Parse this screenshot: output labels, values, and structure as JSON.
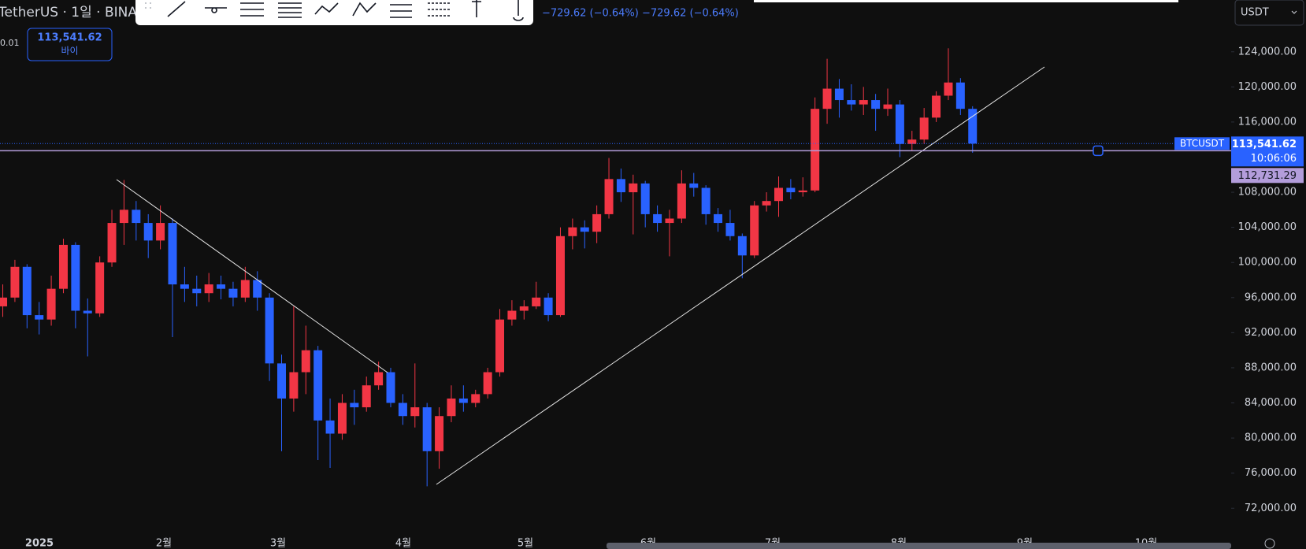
{
  "ui": {
    "title": "TetherUS · 1일 · BINA",
    "quantity": "0.01",
    "buy_price": "113,541.62",
    "buy_label": "바이",
    "change": "−729.62 (−0.64%)  −729.62 (−0.64%)",
    "currency": "USDT",
    "symbol": "BTCUSDT",
    "countdown": "10:06:06"
  },
  "chart_data": {
    "type": "candlestick",
    "up_color": "#f23645",
    "down_color": "#2962ff",
    "ylim": [
      69600,
      129900
    ],
    "yticks": [
      {
        "value": 72000,
        "label": "72,000.00"
      },
      {
        "value": 76000,
        "label": "76,000.00"
      },
      {
        "value": 80000,
        "label": "80,000.00"
      },
      {
        "value": 84000,
        "label": "84,000.00"
      },
      {
        "value": 88000,
        "label": "88,000.00"
      },
      {
        "value": 92000,
        "label": "92,000.00"
      },
      {
        "value": 96000,
        "label": "96,000.00"
      },
      {
        "value": 100000,
        "label": "100,000.00"
      },
      {
        "value": 104000,
        "label": "104,000.00"
      },
      {
        "value": 108000,
        "label": "108,000.00"
      },
      {
        "value": 112000,
        "label": "112,000.00"
      },
      {
        "value": 116000,
        "label": "116,000.00"
      },
      {
        "value": 120000,
        "label": "120,000.00"
      },
      {
        "value": 124000,
        "label": "124,000.00"
      }
    ],
    "xticks": [
      "2025",
      "2월",
      "3월",
      "4월",
      "5월",
      "6월",
      "7월",
      "8월",
      "9월",
      "10월"
    ],
    "current_price": {
      "value": 113541.62,
      "label": "113,541.62"
    },
    "level": {
      "value": 112731.29,
      "label": "112,731.29"
    },
    "candles": [
      [
        95000,
        97500,
        93800,
        96000
      ],
      [
        96000,
        100300,
        95500,
        99500
      ],
      [
        99500,
        99800,
        92500,
        94000
      ],
      [
        94000,
        95500,
        91800,
        93500
      ],
      [
        93500,
        98500,
        92800,
        97000
      ],
      [
        97000,
        102700,
        96500,
        102000
      ],
      [
        102000,
        102300,
        92500,
        94500
      ],
      [
        94500,
        95900,
        89300,
        94200
      ],
      [
        94200,
        100700,
        93800,
        100000
      ],
      [
        100000,
        106000,
        99500,
        104500
      ],
      [
        104500,
        109400,
        102000,
        106000
      ],
      [
        106000,
        107000,
        102500,
        104500
      ],
      [
        104500,
        105500,
        100500,
        102500
      ],
      [
        102500,
        106500,
        101500,
        104500
      ],
      [
        104500,
        105000,
        91500,
        97500
      ],
      [
        97500,
        99500,
        95500,
        97000
      ],
      [
        97000,
        98500,
        95000,
        96500
      ],
      [
        96500,
        98800,
        95500,
        97500
      ],
      [
        97500,
        98500,
        95800,
        97000
      ],
      [
        97000,
        97800,
        95000,
        96000
      ],
      [
        96000,
        99500,
        95500,
        98000
      ],
      [
        98000,
        99000,
        94500,
        96000
      ],
      [
        96000,
        96500,
        86500,
        88500
      ],
      [
        88500,
        89500,
        78500,
        84500
      ],
      [
        84500,
        95000,
        83000,
        87500
      ],
      [
        87500,
        92800,
        85000,
        90000
      ],
      [
        90000,
        90500,
        77500,
        82000
      ],
      [
        82000,
        84500,
        76600,
        80500
      ],
      [
        80500,
        85000,
        79800,
        84000
      ],
      [
        84000,
        85500,
        81500,
        83500
      ],
      [
        83500,
        87000,
        83000,
        86000
      ],
      [
        86000,
        88700,
        85500,
        87500
      ],
      [
        87500,
        88000,
        83500,
        84000
      ],
      [
        84000,
        85000,
        81500,
        82500
      ],
      [
        82500,
        88500,
        81200,
        83500
      ],
      [
        83500,
        84000,
        74500,
        78500
      ],
      [
        78500,
        83500,
        76500,
        82500
      ],
      [
        82500,
        86000,
        81800,
        84500
      ],
      [
        84500,
        86000,
        83000,
        84000
      ],
      [
        84000,
        85500,
        83500,
        85000
      ],
      [
        85000,
        88000,
        84500,
        87500
      ],
      [
        87500,
        94700,
        87000,
        93500
      ],
      [
        93500,
        95700,
        92800,
        94500
      ],
      [
        94500,
        95700,
        93500,
        95000
      ],
      [
        95000,
        97800,
        94700,
        96000
      ],
      [
        96000,
        96500,
        93300,
        94000
      ],
      [
        94000,
        104000,
        93800,
        103000
      ],
      [
        103000,
        105000,
        101500,
        104000
      ],
      [
        104000,
        104800,
        101600,
        103500
      ],
      [
        103500,
        106500,
        102200,
        105500
      ],
      [
        105500,
        111900,
        105000,
        109500
      ],
      [
        109500,
        110700,
        106900,
        108000
      ],
      [
        108000,
        110000,
        103200,
        109000
      ],
      [
        109000,
        109300,
        104000,
        105500
      ],
      [
        105500,
        106500,
        103500,
        104500
      ],
      [
        104500,
        106000,
        100700,
        105000
      ],
      [
        105000,
        110500,
        104500,
        109000
      ],
      [
        109000,
        110200,
        107500,
        108500
      ],
      [
        108500,
        108800,
        104300,
        105500
      ],
      [
        105500,
        106200,
        103500,
        104500
      ],
      [
        104500,
        106000,
        102500,
        103000
      ],
      [
        103000,
        103300,
        98200,
        100800
      ],
      [
        100800,
        107000,
        100500,
        106500
      ],
      [
        106500,
        108000,
        105800,
        107000
      ],
      [
        107000,
        109800,
        105200,
        108500
      ],
      [
        108500,
        109500,
        107200,
        108000
      ],
      [
        108000,
        109700,
        107500,
        108200
      ],
      [
        108200,
        118800,
        108000,
        117500
      ],
      [
        117500,
        123200,
        115800,
        119800
      ],
      [
        119800,
        120900,
        116500,
        118500
      ],
      [
        118500,
        120300,
        117300,
        118000
      ],
      [
        118000,
        120000,
        116800,
        118500
      ],
      [
        118500,
        119200,
        115000,
        117500
      ],
      [
        117500,
        119800,
        116700,
        118000
      ],
      [
        118000,
        118500,
        112000,
        113500
      ],
      [
        113500,
        115000,
        112700,
        114000
      ],
      [
        114000,
        117600,
        113500,
        116500
      ],
      [
        116500,
        119500,
        116000,
        119000
      ],
      [
        119000,
        124400,
        118500,
        120500
      ],
      [
        120500,
        121000,
        116800,
        117500
      ],
      [
        117500,
        117800,
        112500,
        113541.62
      ]
    ]
  }
}
